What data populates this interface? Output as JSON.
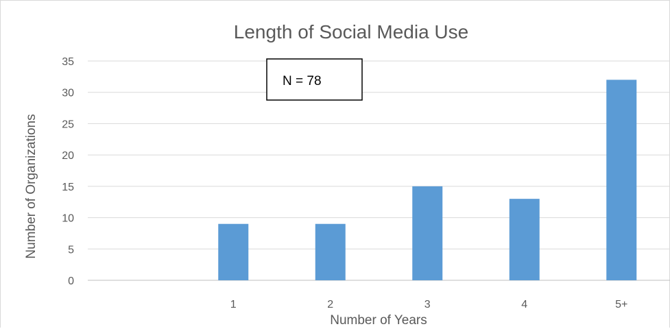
{
  "chart_data": {
    "type": "bar",
    "title": "Length of Social Media Use",
    "xlabel": "Number of Years",
    "ylabel": "Number of Organizations",
    "categories": [
      "",
      "1",
      "2",
      "3",
      "4",
      "5+"
    ],
    "values": [
      null,
      9,
      9,
      15,
      13,
      32
    ],
    "ylim": [
      0,
      35
    ],
    "yticks": [
      0,
      5,
      10,
      15,
      20,
      25,
      30,
      35
    ],
    "grid": true,
    "legend": "none",
    "annotation": "N = 78",
    "bar_color": "#5B9BD5",
    "grid_color": "#D9D9D9",
    "axis_color": "#BFBFBF",
    "text_color": "#595959"
  }
}
